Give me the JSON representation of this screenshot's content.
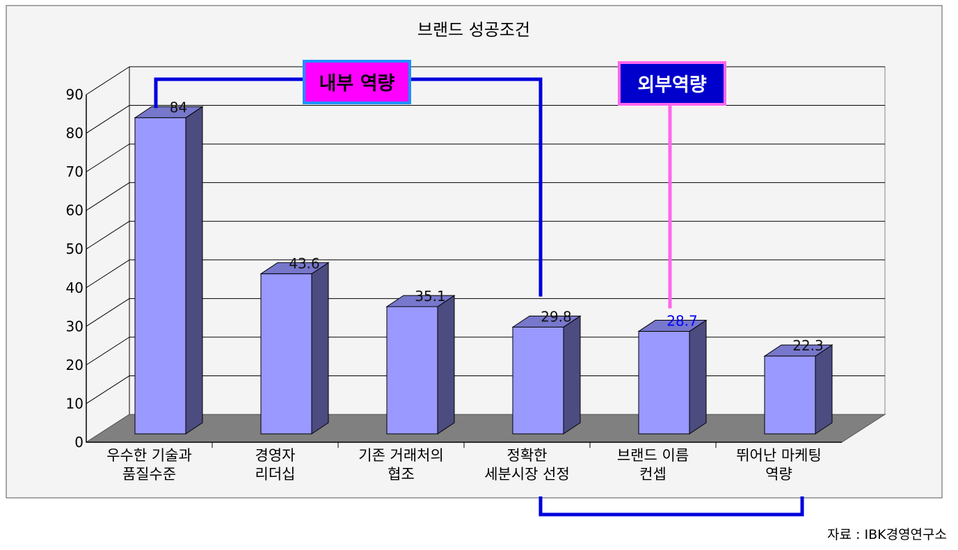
{
  "chart_data": {
    "type": "bar",
    "title": "브랜드 성공조건",
    "categories": [
      [
        "우수한 기술과",
        "품질수준"
      ],
      [
        "경영자",
        "리더십"
      ],
      [
        "기존 거래처의",
        "협조"
      ],
      [
        "정확한",
        "세분시장 선정"
      ],
      [
        "브랜드 이름",
        "컨셉"
      ],
      [
        "뛰어난 마케팅",
        "역량"
      ]
    ],
    "values": [
      84,
      43.6,
      35.1,
      29.8,
      28.7,
      22.3
    ],
    "value_labels": [
      "84",
      "43.6",
      "35.1",
      "29.8",
      "28.7",
      "22.3"
    ],
    "ylim": [
      0,
      90
    ],
    "yticks": [
      0,
      10,
      20,
      30,
      40,
      50,
      60,
      70,
      80,
      90
    ],
    "ytick_labels": [
      "0",
      "10",
      "20",
      "30",
      "40",
      "50",
      "60",
      "70",
      "80",
      "90"
    ],
    "xlabel": "",
    "ylabel": "",
    "grid": true,
    "legend": "none",
    "style_3d": true,
    "highlight_label_index": 4,
    "annotations": [
      {
        "text": "내부 역량",
        "spans_categories": [
          0,
          3
        ]
      },
      {
        "text": "외부역량",
        "spans_categories": [
          3,
          4
        ]
      }
    ]
  },
  "colors": {
    "bar_front": "#9999ff",
    "bar_side": "#4c4c80",
    "bar_top": "#7777cc",
    "floor": "#808080",
    "wall": "#f4f4f4",
    "bracket_internal": "#0000dd",
    "bracket_external": "#ff66ee",
    "label_internal_bg": "#ff00ff",
    "label_internal_border": "#1e90ff",
    "label_external_bg": "#0000cc",
    "label_external_border": "#ff66ee",
    "highlight_value_text": "#0000ff"
  },
  "source": "자료 : IBK경영연구소"
}
